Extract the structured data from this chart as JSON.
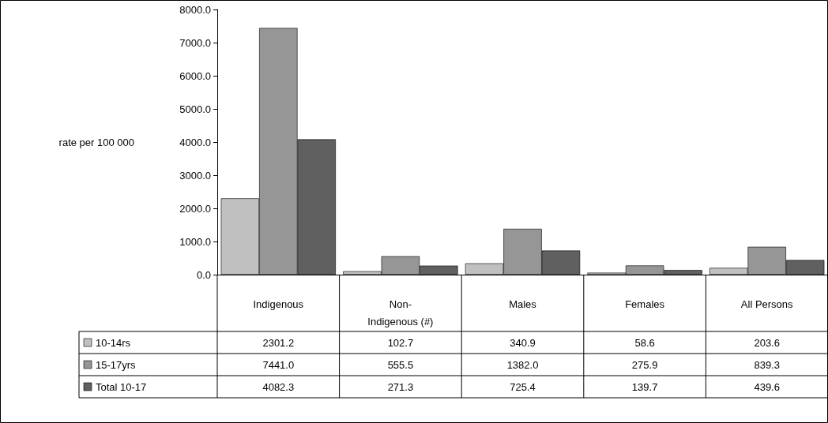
{
  "chart_data": {
    "type": "bar",
    "ylabel": "rate per 100 000",
    "categories": [
      "Indigenous",
      "Non-Indigenous (#)",
      "Males",
      "Females",
      "All Persons"
    ],
    "series": [
      {
        "name": "10-14rs",
        "color": "#c0c0c0",
        "values": [
          2301.2,
          102.7,
          340.9,
          58.6,
          203.6
        ],
        "value_labels": [
          "2301.2",
          "102.7",
          "340.9",
          "58.6",
          "203.6"
        ]
      },
      {
        "name": "15-17yrs",
        "color": "#969696",
        "values": [
          7441.0,
          555.5,
          1382.0,
          275.9,
          839.3
        ],
        "value_labels": [
          "7441.0",
          "555.5",
          "1382.0",
          "275.9",
          "839.3"
        ]
      },
      {
        "name": "Total 10-17",
        "color": "#606060",
        "values": [
          4082.3,
          271.3,
          725.4,
          139.7,
          439.6
        ],
        "value_labels": [
          "4082.3",
          "271.3",
          "725.4",
          "139.7",
          "439.6"
        ]
      }
    ],
    "ylim": [
      0,
      8000
    ],
    "yticks": [
      {
        "value": 0,
        "label": "0.0"
      },
      {
        "value": 1000,
        "label": "1000.0"
      },
      {
        "value": 2000,
        "label": "2000.0"
      },
      {
        "value": 3000,
        "label": "3000.0"
      },
      {
        "value": 4000,
        "label": "4000.0"
      },
      {
        "value": 5000,
        "label": "5000.0"
      },
      {
        "value": 6000,
        "label": "6000.0"
      },
      {
        "value": 7000,
        "label": "7000.0"
      },
      {
        "value": 8000,
        "label": "8000.0"
      }
    ],
    "grid": false,
    "legend": "bottom left"
  }
}
